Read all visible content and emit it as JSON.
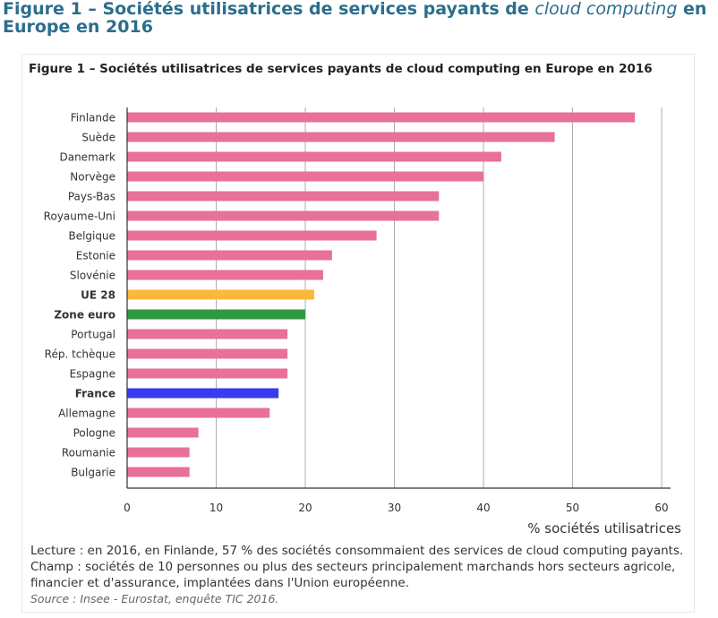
{
  "heading": {
    "prefix": "Figure 1 – Sociétés utilisatrices de services payants de ",
    "italic": "cloud computing",
    "suffix": " en Europe en 2016"
  },
  "figure_title": "Figure 1 – Sociétés utilisatrices de services payants de cloud computing en Europe en 2016",
  "notes": {
    "lecture": "Lecture : en 2016, en Finlande, 57 % des sociétés consommaient des services de cloud computing payants.",
    "champ": "Champ : sociétés de 10 personnes ou plus des secteurs principalement marchands hors secteurs agricole, financier et d'assurance, implantées dans l'Union européenne.",
    "source": "Source : Insee - Eurostat, enquête TIC 2016."
  },
  "colors": {
    "country": "#e8709b",
    "ue28": "#fbb83d",
    "zone_euro": "#2f9940",
    "france": "#3a3af0",
    "grid": "#999999",
    "axis": "#333333"
  },
  "chart_data": {
    "type": "bar",
    "orientation": "horizontal",
    "title": "Figure 1 – Sociétés utilisatrices de services payants de cloud computing en Europe en 2016",
    "xlabel": "% sociétés utilisatrices",
    "ylabel": "",
    "xlim": [
      0,
      61
    ],
    "xticks": [
      0,
      10,
      20,
      30,
      40,
      50,
      60
    ],
    "grid": "vertical",
    "categories": [
      "Finlande",
      "Suède",
      "Danemark",
      "Norvège",
      "Pays-Bas",
      "Royaume-Uni",
      "Belgique",
      "Estonie",
      "Slovénie",
      "UE 28",
      "Zone euro",
      "Portugal",
      "Rép. tchèque",
      "Espagne",
      "France",
      "Allemagne",
      "Pologne",
      "Roumanie",
      "Bulgarie"
    ],
    "values": [
      57,
      48,
      42,
      40,
      35,
      35,
      28,
      23,
      22,
      21,
      20,
      18,
      18,
      18,
      17,
      16,
      8,
      7,
      7
    ],
    "highlight": {
      "UE 28": "ue28",
      "Zone euro": "zone_euro",
      "France": "france"
    },
    "bold_labels": [
      "UE 28",
      "Zone euro",
      "France"
    ]
  }
}
